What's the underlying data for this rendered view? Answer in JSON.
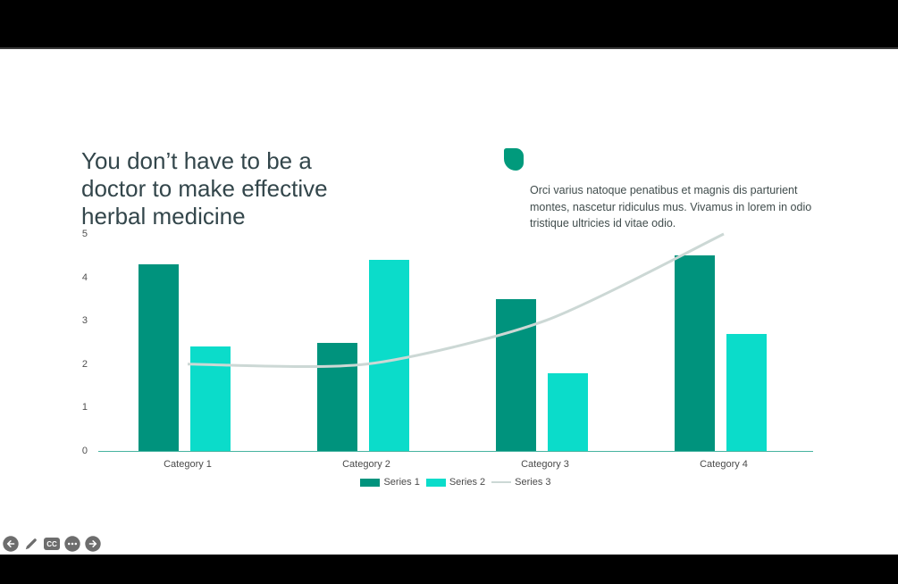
{
  "slide": {
    "title": "You don’t have to be a doctor to make effective herbal medicine",
    "body_text": "Orci varius natoque penatibus et magnis dis parturient montes, nascetur ridiculus mus. Vivamus in lorem in odio tristique ultricies id vitae odio.",
    "accent_color": "#019a7c",
    "title_color": "#33464b"
  },
  "chart_data": {
    "type": "bar",
    "categories": [
      "Category 1",
      "Category 2",
      "Category 3",
      "Category 4"
    ],
    "series": [
      {
        "name": "Series 1",
        "type": "bar",
        "color": "#00937d",
        "values": [
          4.3,
          2.5,
          3.5,
          4.5
        ]
      },
      {
        "name": "Series 2",
        "type": "bar",
        "color": "#0bdcca",
        "values": [
          2.4,
          4.4,
          1.8,
          2.7
        ]
      },
      {
        "name": "Series 3",
        "type": "line",
        "color": "#ccd8d5",
        "values": [
          2.0,
          2.0,
          3.0,
          5.0
        ]
      }
    ],
    "y_ticks": [
      0,
      1,
      2,
      3,
      4,
      5
    ],
    "ylim": [
      0,
      5
    ],
    "grid": false,
    "legend_position": "bottom",
    "axis_color": "#46b3a0",
    "tick_color": "#4f4f4f"
  },
  "toolbar": {
    "icon_color": "#6d6d6d",
    "cc_label": "CC",
    "icons": [
      {
        "name": "previous-slide",
        "icon": "arrow-left-circle-icon"
      },
      {
        "name": "edit",
        "icon": "pencil-icon"
      },
      {
        "name": "closed-captions",
        "icon": "cc-badge-icon"
      },
      {
        "name": "more-options",
        "icon": "ellipsis-circle-icon"
      },
      {
        "name": "next-slide",
        "icon": "arrow-right-circle-icon"
      }
    ]
  }
}
